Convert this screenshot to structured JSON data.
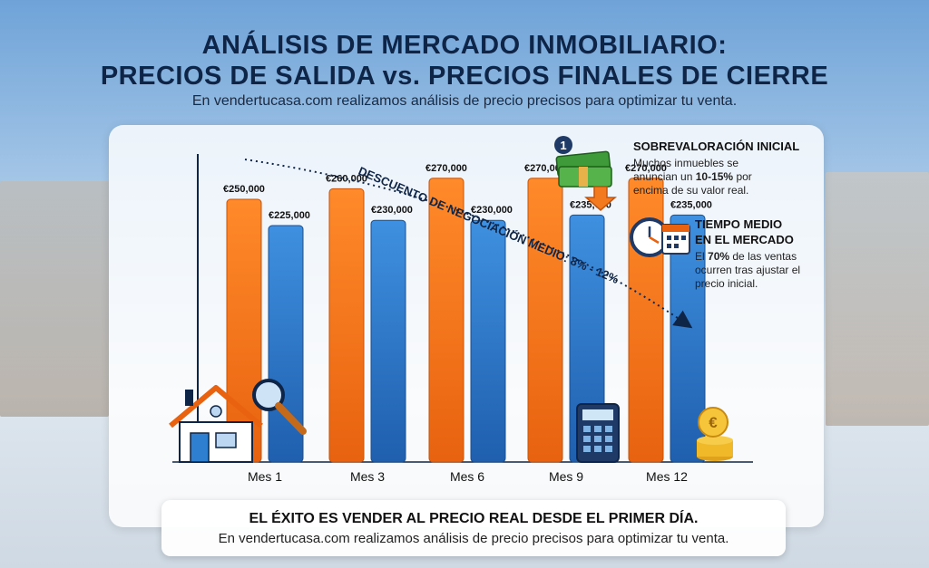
{
  "header": {
    "title_line1": "ANÁLISIS DE MERCADO INMOBILIARIO:",
    "title_line2": "PRECIOS DE SALIDA vs. PRECIOS FINALES DE CIERRE",
    "subtitle": "En vendertucasa.com realizamos análisis de precio precisos para optimizar tu venta."
  },
  "annotation": {
    "trend_label": "DESCUENTO DE NEGOCIACIÓN MEDIO: 8% - 12%"
  },
  "side_notes": [
    {
      "badge": "1",
      "title": "SOBREVALORACIÓN INICIAL",
      "body_pre": "Muchos inmuebles se anuncian un ",
      "body_bold": "10-15%",
      "body_post": " por encima de su valor real."
    },
    {
      "title_line1": "TIEMPO MEDIO",
      "title_line2": "EN EL MERCADO",
      "body_pre": "El ",
      "body_bold": "70%",
      "body_post": " de las ventas ocurren tras ajustar el precio inicial."
    }
  ],
  "banner": {
    "main": "EL ÉXITO ES VENDER AL PRECIO REAL DESDE EL PRIMER DÍA.",
    "sub": "En vendertucasa.com realizamos análisis de precio precisos para optimizar tu venta."
  },
  "icons": [
    "house-icon",
    "magnifier-icon",
    "money-stack-icon",
    "down-arrow-icon",
    "clock-icon",
    "calendar-icon",
    "calculator-icon",
    "euro-coin-icon"
  ],
  "colors": {
    "asking": "#f47a1f",
    "closing": "#2f7fd0",
    "title": "#0f2547"
  },
  "chart_data": {
    "type": "bar",
    "categories": [
      "Mes 1",
      "Mes 3",
      "Mes 6",
      "Mes 9",
      "Mes 12"
    ],
    "series": [
      {
        "values": [
          250000,
          260000,
          270000,
          270000,
          270000
        ],
        "labels": [
          "€250,000",
          "€260,000",
          "€270,000",
          "€270,000",
          "€270,000"
        ],
        "color": "#f47a1f"
      },
      {
        "values": [
          225000,
          230000,
          230000,
          235000,
          235000
        ],
        "labels": [
          "€225,000",
          "€230,000",
          "€230,000",
          "€235,000",
          "€235,000"
        ],
        "color": "#2f7fd0"
      }
    ],
    "grid": false,
    "legend": "none"
  }
}
